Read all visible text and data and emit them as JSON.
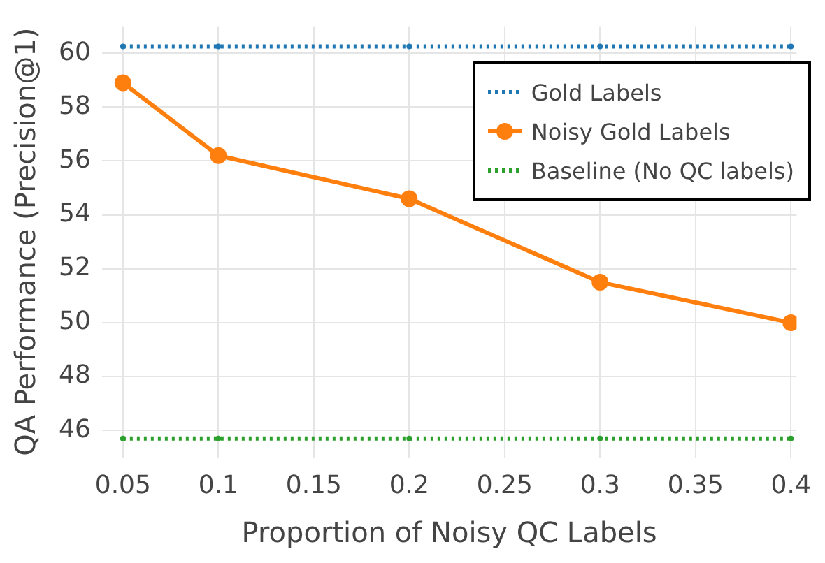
{
  "chart_data": {
    "type": "line",
    "xlabel": "Proportion of Noisy QC Labels",
    "ylabel": "QA Performance (Precision@1)",
    "x": [
      0.05,
      0.1,
      0.2,
      0.3,
      0.4
    ],
    "series": [
      {
        "name": "Gold Labels",
        "color": "#1f77b4",
        "values": [
          60.25,
          60.25,
          60.25,
          60.25,
          60.25
        ],
        "line_style": "dotted",
        "marker": "circle"
      },
      {
        "name": "Noisy Gold Labels",
        "color": "#ff7f0e",
        "values": [
          58.9,
          56.2,
          54.6,
          51.5,
          50.0
        ],
        "line_style": "solid",
        "marker": "circle"
      },
      {
        "name": "Baseline (No QC labels)",
        "color": "#2ca02c",
        "values": [
          45.7,
          45.7,
          45.7,
          45.7,
          45.7
        ],
        "line_style": "dotted",
        "marker": "circle"
      }
    ],
    "xlim": [
      0.039,
      0.403
    ],
    "xticks": [
      0.05,
      0.1,
      0.15,
      0.2,
      0.25,
      0.3,
      0.35,
      0.4
    ],
    "ylim": [
      45,
      61
    ],
    "yticks": [
      46,
      48,
      50,
      52,
      54,
      56,
      58,
      60
    ],
    "grid": true,
    "legend": "top right"
  }
}
